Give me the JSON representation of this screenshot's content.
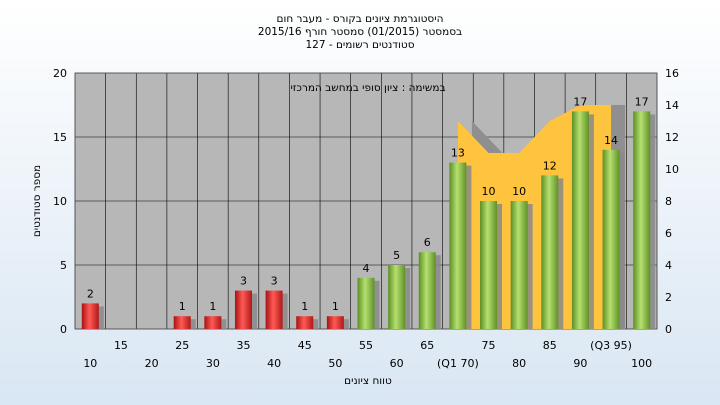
{
  "chart_data": {
    "type": "bar",
    "title_lines": [
      "היסטוגרמת ציונים בקורס - מעבר חום",
      "בסמסטר  (01/2015)  סמסטר חורף  2015/16",
      "סטודנטים רשומים - 127"
    ],
    "subtitle": "במשימה : ציון סופי במחשב המרכזי",
    "ylabel": "מספר סטודנטים",
    "xlabel": "טווח ציונים",
    "ylim": [
      0,
      20
    ],
    "yticks": [
      "0",
      "5",
      "10",
      "15",
      "20"
    ],
    "y2lim": [
      0,
      16
    ],
    "y2ticks": [
      "0",
      "2",
      "4",
      "6",
      "8",
      "10",
      "12",
      "14",
      "16"
    ],
    "categories": [
      "10",
      "15",
      "20",
      "25",
      "30",
      "35",
      "40",
      "45",
      "50",
      "55",
      "60",
      "65",
      "(Q1 70)",
      "75",
      "80",
      "85",
      "90",
      "(Q3 95)",
      "100"
    ],
    "values": [
      2,
      0,
      0,
      1,
      1,
      3,
      3,
      1,
      1,
      4,
      5,
      6,
      13,
      10,
      10,
      12,
      17,
      14,
      17
    ],
    "value_labels": [
      "2",
      "",
      "",
      "1",
      "1",
      "3",
      "3",
      "1",
      "1",
      "4",
      "5",
      "6",
      "13",
      "10",
      "10",
      "12",
      "17",
      "14",
      "17"
    ],
    "bar_colors": [
      "#e8302f",
      "#e8302f",
      "#e8302f",
      "#e8302f",
      "#e8302f",
      "#e8302f",
      "#e8302f",
      "#e8302f",
      "#e8302f",
      "#8cc43f",
      "#8cc43f",
      "#8cc43f",
      "#8cc43f",
      "#8cc43f",
      "#8cc43f",
      "#8cc43f",
      "#8cc43f",
      "#8cc43f",
      "#8cc43f"
    ],
    "area_series": {
      "color": "#ffc43d",
      "x_index": [
        12,
        13,
        14,
        15,
        16,
        17
      ],
      "y2_values": [
        13,
        11,
        11,
        13,
        14,
        14
      ]
    },
    "grid": true,
    "colors": {
      "plot_bg": "#b7b7b7",
      "grid": "#000000",
      "shadow": "#8f8f8f"
    }
  }
}
